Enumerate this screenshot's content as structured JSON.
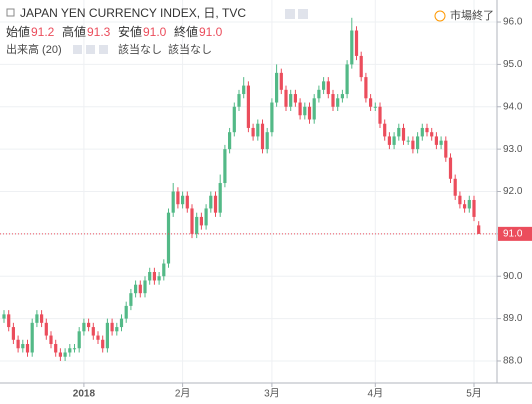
{
  "chart_data": {
    "type": "candlestick",
    "title": "JAPAN YEN CURRENCY INDEX, 日, TVC",
    "ohlc_labels": [
      "始値",
      "高値",
      "安値",
      "終値"
    ],
    "ohlc_values": [
      "91.2",
      "91.3",
      "91.0",
      "91.0"
    ],
    "volume_label": "出来高 (20)",
    "volume_values": [
      "該当なし",
      "該当なし"
    ],
    "market_status": "市場終了",
    "up_color": "#53b987",
    "down_color": "#eb4d5c",
    "grid": true,
    "ylim": [
      87.48,
      96.52
    ],
    "yticks": [
      {
        "value": 88,
        "label": "88.0"
      },
      {
        "value": 89,
        "label": "89.0"
      },
      {
        "value": 90,
        "label": "90.0"
      },
      {
        "value": 91,
        "label": "91.0"
      },
      {
        "value": 92,
        "label": "92.0"
      },
      {
        "value": 93,
        "label": "93.0"
      },
      {
        "value": 94,
        "label": "94.0"
      },
      {
        "value": 95,
        "label": "95.0"
      },
      {
        "value": 96,
        "label": "96.0"
      }
    ],
    "last_price": {
      "value": 91,
      "label": "91.0"
    },
    "categories": [
      null,
      null,
      null,
      null,
      null,
      null,
      null,
      null,
      null,
      null,
      null,
      null,
      null,
      null,
      null,
      null,
      null,
      "2018",
      null,
      null,
      null,
      null,
      null,
      null,
      null,
      null,
      null,
      null,
      null,
      null,
      null,
      null,
      null,
      null,
      null,
      null,
      null,
      null,
      "2月",
      null,
      null,
      null,
      null,
      null,
      null,
      null,
      null,
      null,
      null,
      null,
      null,
      null,
      null,
      null,
      null,
      null,
      null,
      "3月",
      null,
      null,
      null,
      null,
      null,
      null,
      null,
      null,
      null,
      null,
      null,
      null,
      null,
      null,
      null,
      null,
      null,
      null,
      null,
      null,
      null,
      "4月",
      null,
      null,
      null,
      null,
      null,
      null,
      null,
      null,
      null,
      null,
      null,
      null,
      null,
      null,
      null,
      null,
      null,
      null,
      null,
      null,
      "5月",
      null
    ],
    "open": [
      89.0,
      89.1,
      88.8,
      88.5,
      88.3,
      88.4,
      88.2,
      88.9,
      89.1,
      88.9,
      88.6,
      88.4,
      88.2,
      88.1,
      88.2,
      88.3,
      88.3,
      88.7,
      88.9,
      88.8,
      88.6,
      88.5,
      88.3,
      88.9,
      88.7,
      88.8,
      89.0,
      89.3,
      89.6,
      89.8,
      89.6,
      89.9,
      90.1,
      89.9,
      90.0,
      90.3,
      91.5,
      92.0,
      91.7,
      91.9,
      91.6,
      91.0,
      91.4,
      91.2,
      91.6,
      91.9,
      91.5,
      92.2,
      93.0,
      93.4,
      94.0,
      94.3,
      94.5,
      93.5,
      93.3,
      93.6,
      93.0,
      93.4,
      94.1,
      94.8,
      94.4,
      94.0,
      94.3,
      94.1,
      93.8,
      94.0,
      93.7,
      94.2,
      94.4,
      94.6,
      94.3,
      94.0,
      94.2,
      94.3,
      95.0,
      95.8,
      95.2,
      94.7,
      94.2,
      94.0,
      94.0,
      93.6,
      93.3,
      93.1,
      93.3,
      93.5,
      93.2,
      93.2,
      93.0,
      93.3,
      93.5,
      93.4,
      93.3,
      93.1,
      93.2,
      92.8,
      92.3,
      91.9,
      91.7,
      91.6,
      91.8,
      91.2
    ],
    "high": [
      89.2,
      89.2,
      88.9,
      88.6,
      88.5,
      88.5,
      89.0,
      89.2,
      89.2,
      89.0,
      88.7,
      88.5,
      88.3,
      88.3,
      88.4,
      88.4,
      88.8,
      89.0,
      89.0,
      88.9,
      88.7,
      88.6,
      89.0,
      89.0,
      88.9,
      89.1,
      89.4,
      89.7,
      89.9,
      89.9,
      90.0,
      90.2,
      90.2,
      90.1,
      90.4,
      91.6,
      92.2,
      92.1,
      92.0,
      92.0,
      91.7,
      91.5,
      91.5,
      91.7,
      92.0,
      92.0,
      92.4,
      93.1,
      93.5,
      94.1,
      94.4,
      94.7,
      94.6,
      93.6,
      93.7,
      93.7,
      93.5,
      94.2,
      95.0,
      94.9,
      94.5,
      94.4,
      94.4,
      94.2,
      94.1,
      94.1,
      94.3,
      94.5,
      94.7,
      94.7,
      94.4,
      94.3,
      94.4,
      95.1,
      96.1,
      95.9,
      95.3,
      94.8,
      94.3,
      94.1,
      94.1,
      93.7,
      93.4,
      93.4,
      93.6,
      93.6,
      93.3,
      93.3,
      93.4,
      93.6,
      93.6,
      93.5,
      93.4,
      93.3,
      93.3,
      92.9,
      92.4,
      92.0,
      91.8,
      91.9,
      91.9,
      91.3
    ],
    "low": [
      88.9,
      88.7,
      88.4,
      88.2,
      88.2,
      88.1,
      88.1,
      88.8,
      88.8,
      88.5,
      88.3,
      88.1,
      88.0,
      88.0,
      88.1,
      88.2,
      88.2,
      88.6,
      88.7,
      88.5,
      88.4,
      88.2,
      88.2,
      88.6,
      88.6,
      88.7,
      88.9,
      89.2,
      89.5,
      89.5,
      89.5,
      89.8,
      89.8,
      89.8,
      89.9,
      90.2,
      91.4,
      91.6,
      91.6,
      91.5,
      90.9,
      90.9,
      91.1,
      91.1,
      91.5,
      91.4,
      91.4,
      92.1,
      92.9,
      93.3,
      93.9,
      94.2,
      93.4,
      93.2,
      93.2,
      92.9,
      92.9,
      93.3,
      94.0,
      94.3,
      93.9,
      93.9,
      94.0,
      93.7,
      93.7,
      93.6,
      93.6,
      94.1,
      94.3,
      94.2,
      93.9,
      93.9,
      94.1,
      94.2,
      94.9,
      95.1,
      94.6,
      94.1,
      93.9,
      93.9,
      93.5,
      93.2,
      93.0,
      93.0,
      93.2,
      93.1,
      93.1,
      92.9,
      92.9,
      93.2,
      93.3,
      93.2,
      93.0,
      93.0,
      92.7,
      92.2,
      91.8,
      91.6,
      91.5,
      91.5,
      91.3,
      91.0
    ],
    "close": [
      89.1,
      88.8,
      88.5,
      88.3,
      88.4,
      88.2,
      88.9,
      89.1,
      88.9,
      88.6,
      88.4,
      88.2,
      88.1,
      88.2,
      88.3,
      88.3,
      88.7,
      88.9,
      88.8,
      88.6,
      88.5,
      88.3,
      88.9,
      88.7,
      88.8,
      89.0,
      89.3,
      89.6,
      89.8,
      89.6,
      89.9,
      90.1,
      89.9,
      90.0,
      90.3,
      91.5,
      92.0,
      91.7,
      91.9,
      91.6,
      91.0,
      91.4,
      91.2,
      91.6,
      91.9,
      91.5,
      92.2,
      93.0,
      93.4,
      94.0,
      94.3,
      94.5,
      93.5,
      93.3,
      93.6,
      93.0,
      93.4,
      94.1,
      94.8,
      94.4,
      94.0,
      94.3,
      94.1,
      93.8,
      94.0,
      93.7,
      94.2,
      94.4,
      94.6,
      94.3,
      94.0,
      94.2,
      94.3,
      95.0,
      95.8,
      95.2,
      94.7,
      94.2,
      94.0,
      94.0,
      93.6,
      93.3,
      93.1,
      93.3,
      93.5,
      93.2,
      93.2,
      93.0,
      93.3,
      93.5,
      93.4,
      93.3,
      93.1,
      93.2,
      92.8,
      92.3,
      91.9,
      91.7,
      91.6,
      91.8,
      91.4,
      91.0
    ]
  }
}
